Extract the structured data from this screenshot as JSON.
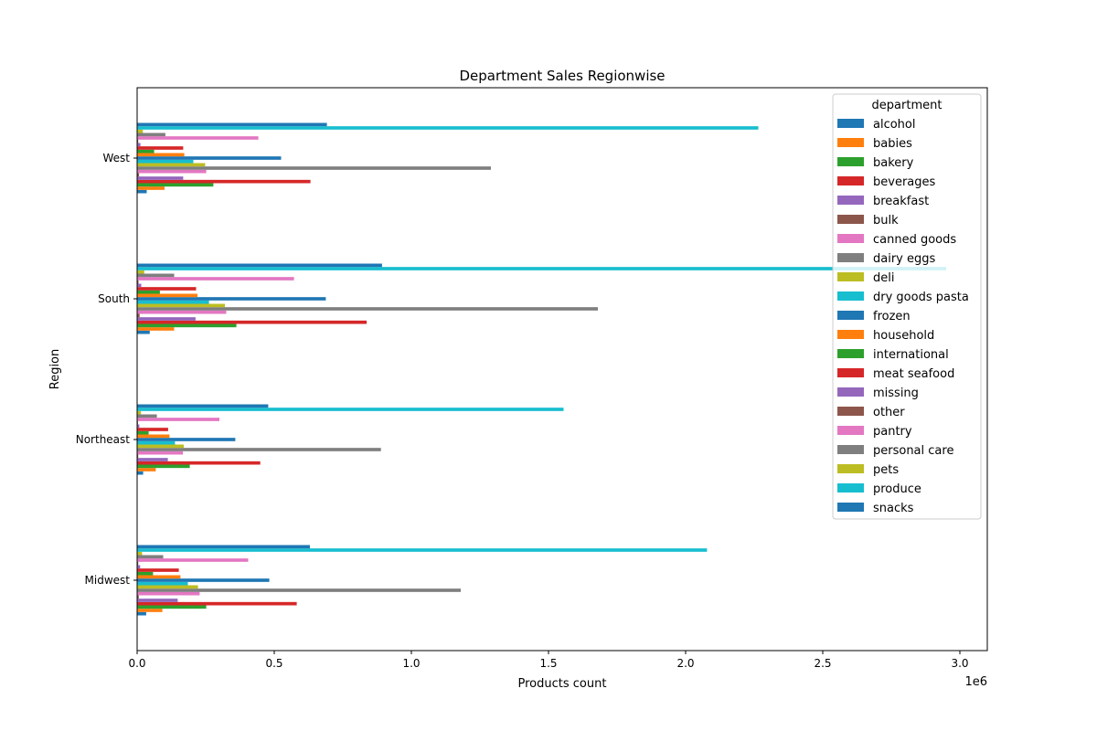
{
  "chart_data": {
    "type": "bar",
    "orientation": "horizontal",
    "title": "Department Sales Regionwise",
    "xlabel": "Products count",
    "ylabel": "Region",
    "x_offset_label": "1e6",
    "xlim": [
      0,
      3100000
    ],
    "x_ticks": [
      0,
      500000,
      1000000,
      1500000,
      2000000,
      2500000,
      3000000
    ],
    "x_tick_labels": [
      "0.0",
      "0.5",
      "1.0",
      "1.5",
      "2.0",
      "2.5",
      "3.0"
    ],
    "categories": [
      "Midwest",
      "Northeast",
      "South",
      "West"
    ],
    "legend_title": "department",
    "legend_placement": "upper right",
    "grid": false,
    "series": [
      {
        "name": "alcohol",
        "color": "#1f77b4",
        "values": [
          33000,
          22000,
          46000,
          35000
        ]
      },
      {
        "name": "babies",
        "color": "#ff7f0e",
        "values": [
          92000,
          68000,
          135000,
          100000
        ]
      },
      {
        "name": "bakery",
        "color": "#2ca02c",
        "values": [
          252000,
          192000,
          362000,
          278000
        ]
      },
      {
        "name": "beverages",
        "color": "#d62728",
        "values": [
          582000,
          449000,
          837000,
          632000
        ]
      },
      {
        "name": "breakfast",
        "color": "#9467bd",
        "values": [
          148000,
          112000,
          213000,
          168000
        ]
      },
      {
        "name": "bulk",
        "color": "#8c564b",
        "values": [
          6000,
          4000,
          9000,
          7000
        ]
      },
      {
        "name": "canned goods",
        "color": "#e377c2",
        "values": [
          228000,
          167000,
          325000,
          252000
        ]
      },
      {
        "name": "dairy eggs",
        "color": "#7f7f7f",
        "values": [
          1180000,
          889000,
          1680000,
          1290000
        ]
      },
      {
        "name": "deli",
        "color": "#bcbd22",
        "values": [
          222000,
          170000,
          320000,
          248000
        ]
      },
      {
        "name": "dry goods pasta",
        "color": "#17becf",
        "values": [
          185000,
          138000,
          262000,
          205000
        ]
      },
      {
        "name": "frozen",
        "color": "#1f77b4",
        "values": [
          482000,
          358000,
          688000,
          525000
        ]
      },
      {
        "name": "household",
        "color": "#ff7f0e",
        "values": [
          158000,
          118000,
          220000,
          172000
        ]
      },
      {
        "name": "international",
        "color": "#2ca02c",
        "values": [
          58000,
          42000,
          83000,
          62000
        ]
      },
      {
        "name": "meat seafood",
        "color": "#d62728",
        "values": [
          152000,
          113000,
          215000,
          168000
        ]
      },
      {
        "name": "missing",
        "color": "#9467bd",
        "values": [
          11000,
          8000,
          15000,
          12000
        ]
      },
      {
        "name": "other",
        "color": "#8c564b",
        "values": [
          4000,
          3000,
          5000,
          4000
        ]
      },
      {
        "name": "pantry",
        "color": "#e377c2",
        "values": [
          405000,
          300000,
          572000,
          442000
        ]
      },
      {
        "name": "personal care",
        "color": "#7f7f7f",
        "values": [
          95000,
          72000,
          135000,
          103000
        ]
      },
      {
        "name": "pets",
        "color": "#bcbd22",
        "values": [
          18000,
          14000,
          26000,
          21000
        ]
      },
      {
        "name": "produce",
        "color": "#17becf",
        "values": [
          2078000,
          1555000,
          2950000,
          2265000
        ]
      },
      {
        "name": "snacks",
        "color": "#1f77b4",
        "values": [
          630000,
          478000,
          893000,
          692000
        ]
      }
    ]
  }
}
